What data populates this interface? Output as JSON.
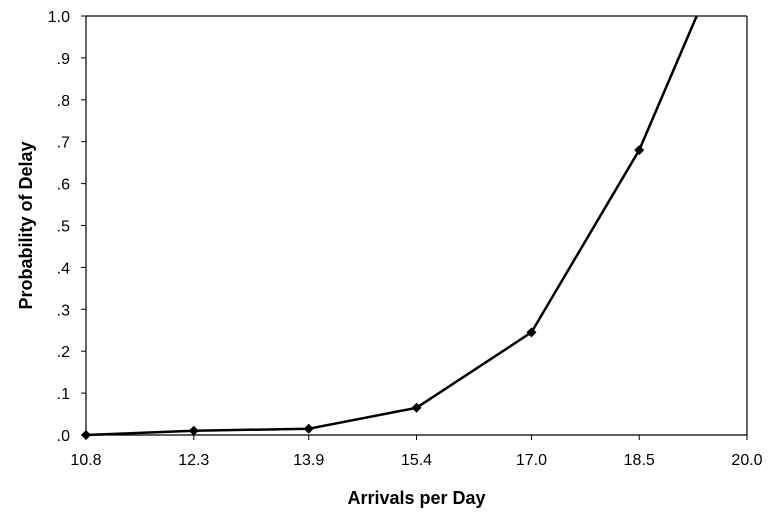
{
  "chart_data": {
    "type": "line",
    "xlabel": "Arrivals per Day",
    "ylabel": "Probability of Delay",
    "xlim": [
      10.8,
      20.0
    ],
    "ylim": [
      0,
      1.0
    ],
    "x_ticks": [
      "10.8",
      "12.3",
      "13.9",
      "15.4",
      "17.0",
      "18.5",
      "20.0"
    ],
    "x_tick_values": [
      10.8,
      12.3,
      13.9,
      15.4,
      17.0,
      18.5,
      20.0
    ],
    "y_ticks": [
      ".0",
      ".1",
      ".2",
      ".3",
      ".4",
      ".5",
      ".6",
      ".7",
      ".8",
      ".9",
      "1.0"
    ],
    "y_tick_values": [
      0,
      0.1,
      0.2,
      0.3,
      0.4,
      0.5,
      0.6,
      0.7,
      0.8,
      0.9,
      1.0
    ],
    "grid": false,
    "legend": "none",
    "series": [
      {
        "x": [
          10.8,
          12.3,
          13.9,
          15.4,
          17.0,
          18.5,
          19.3
        ],
        "y": [
          0.0,
          0.01,
          0.015,
          0.065,
          0.245,
          0.68,
          1.0
        ],
        "markers": [
          true,
          true,
          true,
          true,
          true,
          true,
          false
        ],
        "color": "#000000"
      }
    ]
  }
}
